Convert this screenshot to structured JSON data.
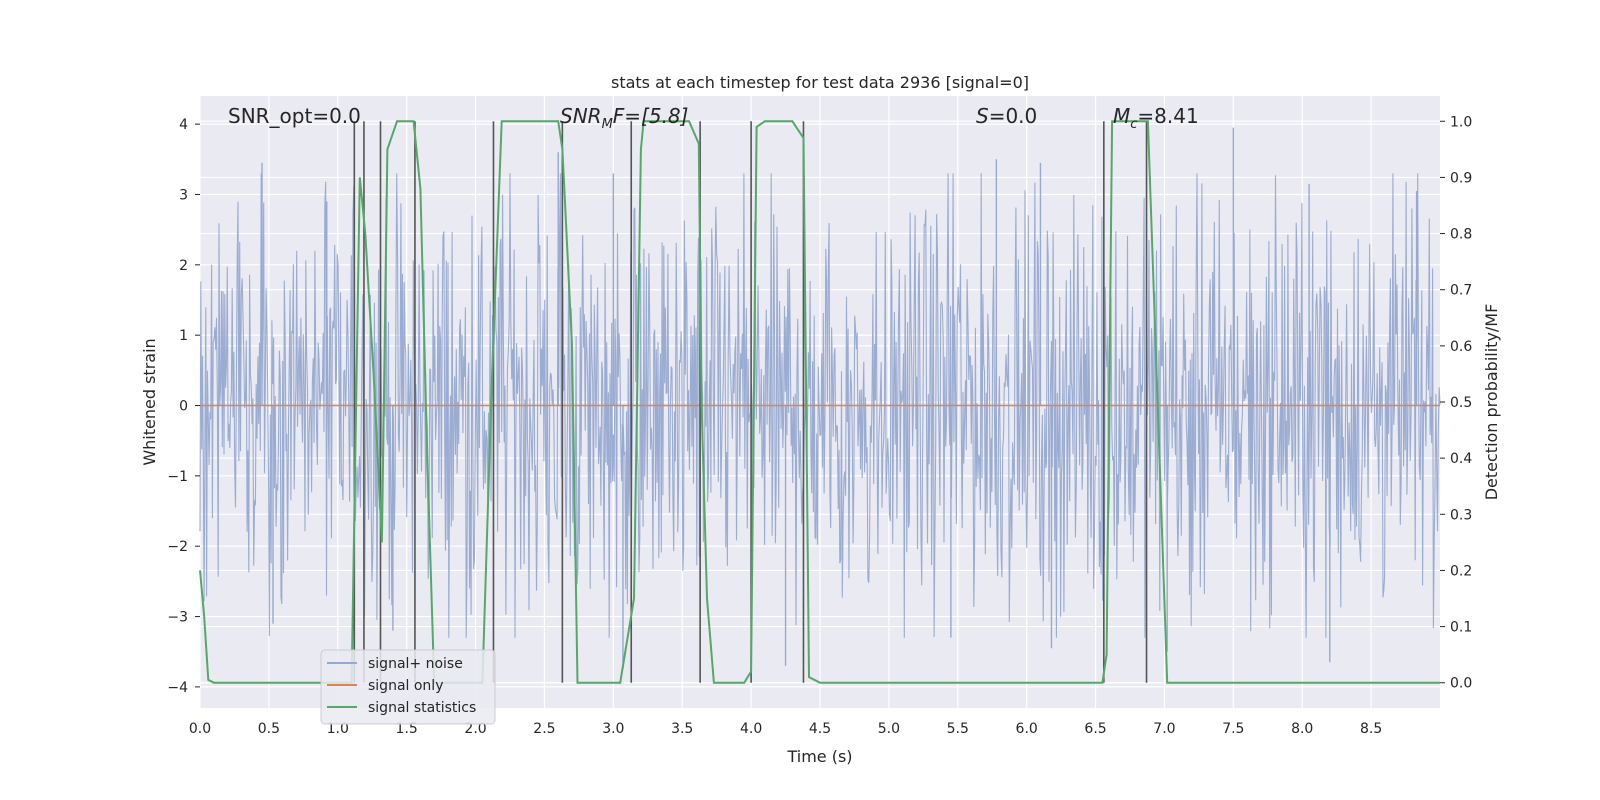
{
  "chart_data": {
    "type": "line",
    "title": "stats at each timestep for test data 2936 [signal=0]",
    "xlabel": "Time (s)",
    "ylabel": "Whitened strain",
    "y2label": "Detection probability/MF",
    "xlim": [
      0,
      9
    ],
    "ylim": [
      -4.3,
      4.4
    ],
    "y2lim": [
      -0.045,
      1.045
    ],
    "xticks": [
      "0.0",
      "0.5",
      "1.0",
      "1.5",
      "2.0",
      "2.5",
      "3.0",
      "3.5",
      "4.0",
      "4.5",
      "5.0",
      "5.5",
      "6.0",
      "6.5",
      "7.0",
      "7.5",
      "8.0",
      "8.5"
    ],
    "yticks": [
      "4",
      "3",
      "2",
      "1",
      "0",
      "−1",
      "−2",
      "−3",
      "−4"
    ],
    "y2ticks": [
      "1.0",
      "0.9",
      "0.8",
      "0.7",
      "0.6",
      "0.5",
      "0.4",
      "0.3",
      "0.2",
      "0.1",
      "0.0"
    ],
    "grid": true,
    "legend_position": "lower-left",
    "annotations": {
      "snr_opt": "SNR_opt=0.0",
      "snr_mf_main": "SNR",
      "snr_mf_sub": "M",
      "snr_mf_rest": "F=[5.8]",
      "s_italic": "S",
      "s_rest": "=0.0",
      "mc_italic": "M",
      "mc_sub": "c",
      "mc_rest": "=8.41"
    },
    "series": [
      {
        "name": "signal+ noise",
        "color": "#97a9d0",
        "note_values": "noise band, roughly within [-2.5, 2.5] with spikes up to about ±3.6",
        "envelope_abs": 2.3,
        "spike_peaks": [
          [
            0.45,
            3.45
          ],
          [
            0.92,
            2.9
          ],
          [
            2.6,
            3.6
          ],
          [
            3.0,
            3.3
          ],
          [
            4.38,
            2.5
          ],
          [
            5.78,
            3.5
          ],
          [
            6.1,
            3.45
          ],
          [
            7.5,
            3.95
          ],
          [
            8.05,
            3.15
          ],
          [
            8.83,
            3.05
          ],
          [
            0.53,
            -3.1
          ],
          [
            1.4,
            -3.2
          ],
          [
            3.07,
            -3.75
          ],
          [
            4.25,
            -3.7
          ],
          [
            5.45,
            -3.3
          ],
          [
            6.18,
            -3.45
          ],
          [
            7.02,
            -3.5
          ],
          [
            8.2,
            -3.65
          ]
        ]
      },
      {
        "name": "signal only",
        "color": "#dd8452",
        "x": [
          0,
          9
        ],
        "y": [
          0,
          0
        ]
      },
      {
        "name": "signal statistics",
        "color": "#55a868",
        "axis": "right",
        "x": [
          0.0,
          0.03,
          0.06,
          0.1,
          0.15,
          1.1,
          1.16,
          1.2,
          1.26,
          1.32,
          1.36,
          1.43,
          1.55,
          1.6,
          1.65,
          1.7,
          2.05,
          2.12,
          2.19,
          2.6,
          2.63,
          2.7,
          2.74,
          2.8,
          3.05,
          3.15,
          3.2,
          3.22,
          3.55,
          3.62,
          3.64,
          3.68,
          3.73,
          3.8,
          3.95,
          4.0,
          4.04,
          4.1,
          4.3,
          4.38,
          4.42,
          4.5,
          6.55,
          6.58,
          6.62,
          6.88,
          6.95,
          7.02,
          7.06,
          9.0
        ],
        "y": [
          0.2,
          0.12,
          0.005,
          0.0,
          0.0,
          0.0,
          0.9,
          0.8,
          0.55,
          0.25,
          0.95,
          1.0,
          1.0,
          0.88,
          0.4,
          0.0,
          0.0,
          0.55,
          1.0,
          1.0,
          0.95,
          0.6,
          0.0,
          0.0,
          0.0,
          0.15,
          0.95,
          1.0,
          1.0,
          0.96,
          0.5,
          0.15,
          0.0,
          0.0,
          0.0,
          0.02,
          0.99,
          1.0,
          1.0,
          0.97,
          0.01,
          0.0,
          0.0,
          0.05,
          1.0,
          1.0,
          0.5,
          0.0,
          0.0,
          0.0
        ]
      }
    ],
    "vertical_markers": {
      "color": "#555555",
      "x": [
        1.12,
        1.19,
        1.31,
        1.56,
        2.13,
        2.63,
        3.13,
        3.63,
        4.0,
        4.38,
        6.56,
        6.87
      ],
      "ymin_prob": 0.0,
      "ymax_prob": 1.0
    }
  }
}
